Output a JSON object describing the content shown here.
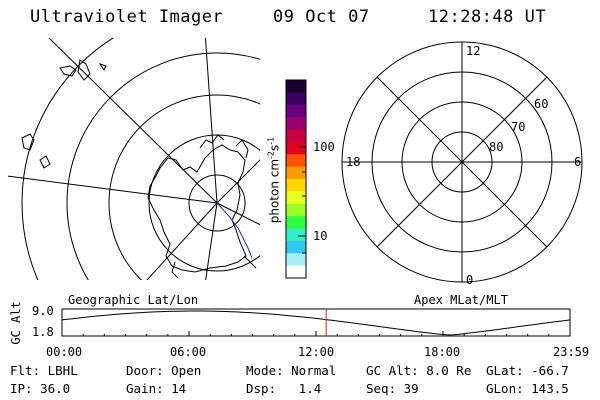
{
  "header": {
    "title": "Ultraviolet Imager",
    "date": "09 Oct 07",
    "time": "12:28:48 UT"
  },
  "color_bar": {
    "unit_label": "photon cm-2s-1",
    "tick_100": "100",
    "tick_10": "10",
    "colors": [
      "#1a0030",
      "#3a0060",
      "#6a007f",
      "#9a0070",
      "#c80040",
      "#e00020",
      "#ff5000",
      "#ff9c00",
      "#ffd800",
      "#e8ff20",
      "#9cff20",
      "#30ff40",
      "#30f0c8",
      "#30c8f0",
      "#a8f0f8",
      "#ffffff"
    ]
  },
  "polar_plot": {
    "label_12": "12",
    "label_18": "18",
    "label_6": "6",
    "label_0": "0",
    "label_60": "60",
    "label_70": "70",
    "label_80": "80"
  },
  "lat_lon_labels": {
    "geographic": "Geographic Lat/Lon",
    "apex": "Apex MLat/MLT"
  },
  "altitude_plot": {
    "axis_label": "GC Alt",
    "y_top": "9.0",
    "y_bottom": "1.8",
    "x_ticks": [
      "00:00",
      "06:00",
      "12:00",
      "18:00",
      "23:59"
    ],
    "current_time_marker_hour": 12.48
  },
  "status": {
    "flt": "Flt: LBHL",
    "ip": "IP: 36.0",
    "door": "Door: Open",
    "gain": "Gain: 14",
    "mode": "Mode: Normal",
    "dsp": "Dsp:   1.4",
    "gc_alt": "GC Alt: 8.0 Re",
    "seq": "Seq: 39",
    "glat": "GLat: -66.7",
    "glon": "GLon: 143.5"
  }
}
